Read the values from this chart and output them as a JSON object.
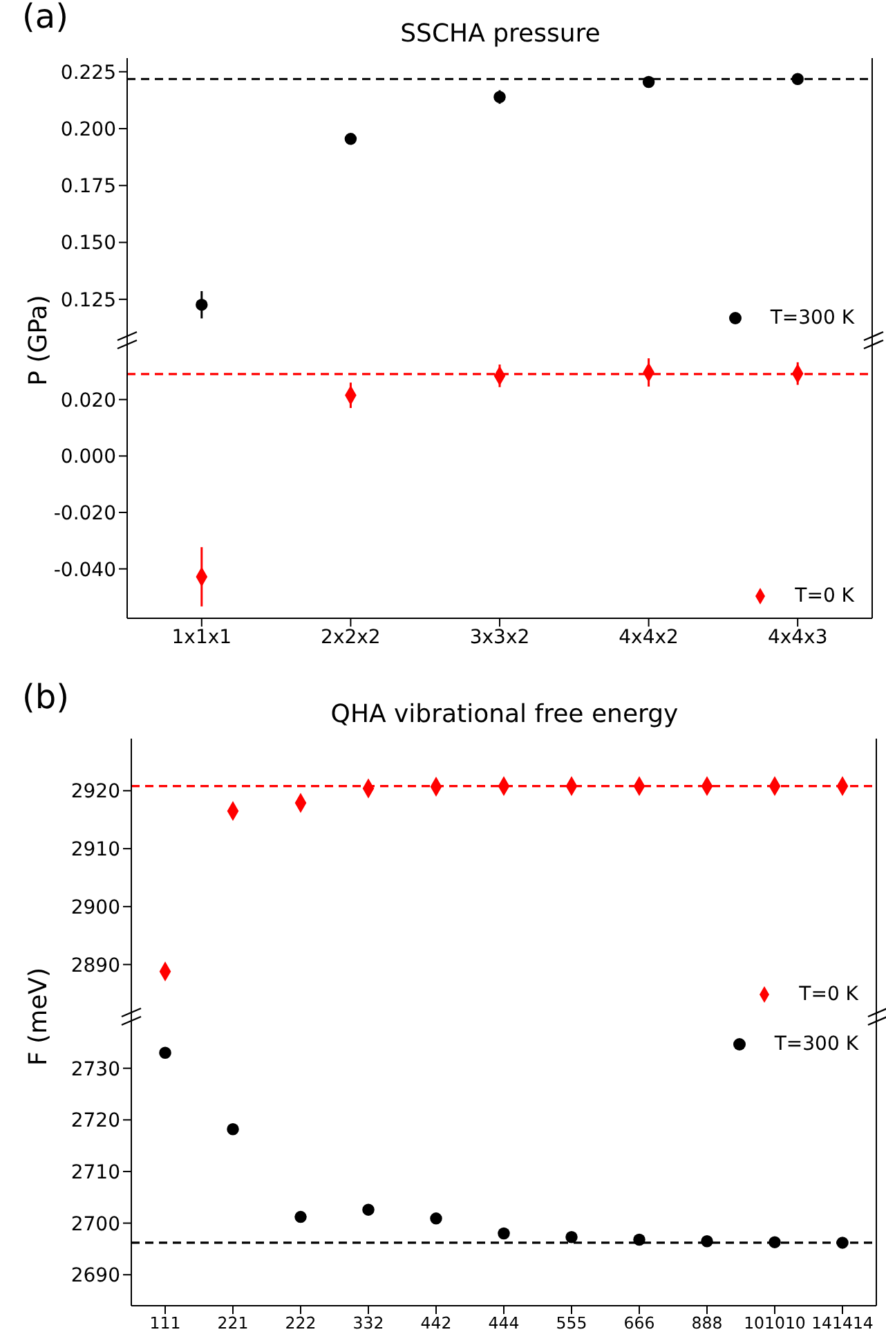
{
  "chart_data": [
    {
      "type": "scatter",
      "title": "SSCHA pressure",
      "ylabel": "P (GPa)",
      "annotations": [
        "(a)"
      ],
      "tick_labels": "y",
      "ylim": [
        0.107,
        0.231
      ],
      "yticks": [
        0.125,
        {
          "value": 0.15,
          "label": "0.150"
        },
        0.175,
        {
          "value": 0.2,
          "label": "0.200"
        },
        0.225
      ],
      "marker": "circle",
      "legend": "bottom right",
      "series": [
        {
          "name": "T=300 K",
          "color": "#000000",
          "values": [
            0.1226,
            0.1955,
            0.2139,
            0.2205,
            0.2218
          ],
          "errors": [
            0.006,
            0.0015,
            0.003,
            0.0015,
            0.0025
          ]
        }
      ],
      "ref_lines": [
        {
          "axis": "y",
          "value": 0.2218,
          "color": "#000000",
          "line_style": "dashed"
        }
      ]
    },
    {
      "type": "scatter",
      "categories": [
        "1x1x1",
        "2x2x2",
        "3x3x2",
        "4x4x2",
        "4x4x3"
      ],
      "ylim": [
        -0.0575,
        0.041
      ],
      "yticks": [
        {
          "value": -0.04,
          "label": "-0.040"
        },
        {
          "value": -0.02,
          "label": "-0.020"
        },
        {
          "value": 0,
          "label": "0.000"
        },
        {
          "value": 0.02,
          "label": "0.020"
        }
      ],
      "marker": "diamond",
      "legend": "bottom right",
      "series": [
        {
          "name": "T=0 K",
          "color": "#ff0000",
          "values": [
            -0.0428,
            0.0215,
            0.0284,
            0.0296,
            0.0292
          ],
          "errors": [
            0.0105,
            0.0045,
            0.004,
            0.005,
            0.004
          ]
        }
      ],
      "ref_lines": [
        {
          "axis": "y",
          "value": 0.029,
          "color": "#ff0000",
          "line_style": "dashed"
        }
      ]
    },
    {
      "type": "scatter",
      "title": "QHA vibrational free energy",
      "ylabel": "F (meV)",
      "annotations": [
        "(b)"
      ],
      "tick_labels": "y",
      "ylim": [
        2881,
        2929
      ],
      "yticks": [
        2890,
        2900,
        2910,
        2920
      ],
      "marker": "diamond",
      "legend": "bottom right",
      "series": [
        {
          "name": "T=0 K",
          "color": "#ff0000",
          "values": [
            2888.8,
            2916.5,
            2917.9,
            2920.4,
            2920.7,
            2920.8,
            2920.8,
            2920.8,
            2920.8,
            2920.8,
            2920.8
          ]
        }
      ],
      "ref_lines": [
        {
          "axis": "y",
          "value": 2920.8,
          "color": "#ff0000",
          "line_style": "dashed"
        }
      ]
    },
    {
      "type": "scatter",
      "categories": [
        "111",
        "221",
        "222",
        "332",
        "442",
        "444",
        "555",
        "666",
        "888",
        "101010",
        "141414"
      ],
      "ylim": [
        2684,
        2740
      ],
      "yticks": [
        2690,
        2700,
        2710,
        2720,
        2730
      ],
      "marker": "circle",
      "legend": "top right",
      "series": [
        {
          "name": "T=300 K",
          "color": "#000000",
          "values": [
            2733,
            2718.2,
            2701.2,
            2702.6,
            2700.9,
            2698,
            2697.3,
            2696.8,
            2696.5,
            2696.3,
            2696.2
          ]
        }
      ],
      "ref_lines": [
        {
          "axis": "y",
          "value": 2696.2,
          "color": "#000000",
          "line_style": "dashed"
        }
      ]
    }
  ]
}
